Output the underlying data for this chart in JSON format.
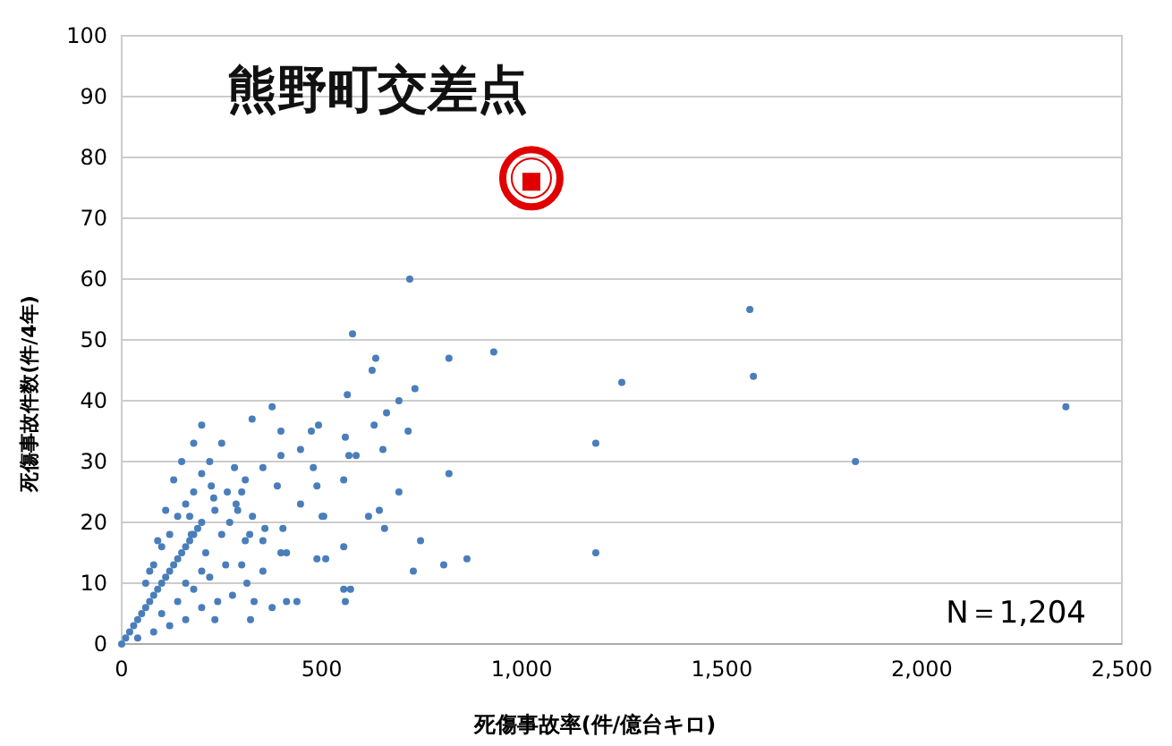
{
  "chart_data": {
    "type": "scatter",
    "xlabel": "死傷事故率(件/億台キロ)",
    "ylabel": "死傷事故件数(件/4年)",
    "xlim": [
      0,
      2500
    ],
    "ylim": [
      0,
      100
    ],
    "xticks": [
      0,
      500,
      {
        "value": 1000,
        "label": "1,000"
      },
      {
        "value": 1500,
        "label": "1,500"
      },
      {
        "value": 2000,
        "label": "2,000"
      },
      {
        "value": 2500,
        "label": "2,500"
      }
    ],
    "yticks": [
      0,
      10,
      20,
      30,
      40,
      50,
      60,
      70,
      80,
      90,
      100
    ],
    "grid": "y",
    "series": [
      {
        "color": "#4a7ebb",
        "marker": "circle",
        "x": [
          2360,
          1834,
          1570,
          1579,
          1250,
          1185,
          1185,
          720,
          577,
          635,
          818,
          930,
          626,
          564,
          733,
          693,
          662,
          631,
          716,
          559,
          653,
          568,
          586,
          555,
          818,
          693,
          501,
          617,
          644,
          657,
          747,
          555,
          510,
          729,
          805,
          863,
          555,
          572,
          559,
          376,
          326,
          398,
          474,
          492,
          447,
          398,
          353,
          479,
          282,
          309,
          224,
          264,
          389,
          488,
          286,
          447,
          233,
          327,
          170,
          403,
          505,
          358,
          309,
          353,
          174,
          412,
          488,
          398,
          300,
          353,
          313,
          376,
          412,
          438,
          331,
          277,
          322,
          233,
          0,
          10,
          20,
          30,
          40,
          50,
          60,
          70,
          80,
          90,
          100,
          110,
          120,
          130,
          140,
          150,
          160,
          170,
          180,
          190,
          200,
          60,
          80,
          100,
          120,
          140,
          160,
          180,
          200,
          220,
          40,
          80,
          120,
          160,
          200,
          240,
          100,
          140,
          180,
          220,
          260,
          250,
          230,
          210,
          270,
          200,
          160,
          290,
          320,
          300,
          250,
          200,
          150,
          180,
          130,
          110,
          90,
          70
        ],
        "values": [
          39,
          30,
          55,
          44,
          43,
          33,
          15,
          60,
          51,
          47,
          47,
          48,
          45,
          41,
          42,
          40,
          38,
          36,
          35,
          34,
          32,
          31,
          31,
          27,
          28,
          25,
          21,
          21,
          22,
          19,
          17,
          16,
          14,
          12,
          13,
          14,
          9,
          9,
          7,
          39,
          37,
          35,
          35,
          36,
          32,
          31,
          29,
          29,
          29,
          27,
          26,
          25,
          26,
          26,
          23,
          23,
          22,
          21,
          21,
          19,
          21,
          19,
          17,
          17,
          18,
          15,
          14,
          15,
          13,
          12,
          10,
          6,
          7,
          7,
          7,
          8,
          4,
          4,
          0,
          1,
          2,
          3,
          4,
          5,
          6,
          7,
          8,
          9,
          10,
          11,
          12,
          13,
          14,
          15,
          16,
          17,
          18,
          19,
          20,
          10,
          13,
          16,
          18,
          21,
          23,
          25,
          28,
          30,
          1,
          2,
          3,
          4,
          6,
          7,
          5,
          7,
          9,
          11,
          13,
          18,
          24,
          15,
          20,
          12,
          10,
          22,
          18,
          25,
          33,
          36,
          30,
          33,
          27,
          22,
          17,
          12
        ]
      },
      {
        "color": "#e00000",
        "marker": "square",
        "x": [
          1024
        ],
        "values": [
          76
        ]
      }
    ],
    "annotations": [
      {
        "text": "熊野町交差点",
        "x": 1024,
        "y": 76
      },
      "N＝1,204"
    ]
  }
}
